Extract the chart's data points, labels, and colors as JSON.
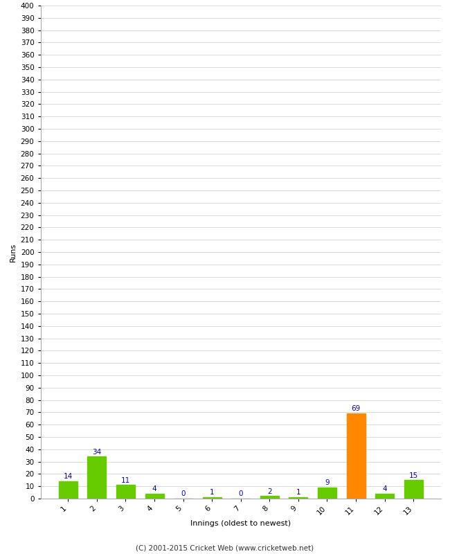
{
  "xlabel": "Innings (oldest to newest)",
  "ylabel": "Runs",
  "categories": [
    "1",
    "2",
    "3",
    "4",
    "5",
    "6",
    "7",
    "8",
    "9",
    "10",
    "11",
    "12",
    "13"
  ],
  "values": [
    14,
    34,
    11,
    4,
    0,
    1,
    0,
    2,
    1,
    9,
    69,
    4,
    15
  ],
  "bar_colors": [
    "#66cc00",
    "#66cc00",
    "#66cc00",
    "#66cc00",
    "#66cc00",
    "#66cc00",
    "#66cc00",
    "#66cc00",
    "#66cc00",
    "#66cc00",
    "#ff8800",
    "#66cc00",
    "#66cc00"
  ],
  "label_color": "#0000cc",
  "ylim": [
    0,
    400
  ],
  "yticks": [
    0,
    10,
    20,
    30,
    40,
    50,
    60,
    70,
    80,
    90,
    100,
    110,
    120,
    130,
    140,
    150,
    160,
    170,
    180,
    190,
    200,
    210,
    220,
    230,
    240,
    250,
    260,
    270,
    280,
    290,
    300,
    310,
    320,
    330,
    340,
    350,
    360,
    370,
    380,
    390,
    400
  ],
  "footer": "(C) 2001-2015 Cricket Web (www.cricketweb.net)",
  "background_color": "#ffffff",
  "grid_color": "#cccccc",
  "bar_width": 0.65,
  "label_fontsize": 7.5,
  "axis_label_fontsize": 8,
  "tick_fontsize": 7.5,
  "ylabel_fontsize": 8,
  "footer_fontsize": 7.5
}
